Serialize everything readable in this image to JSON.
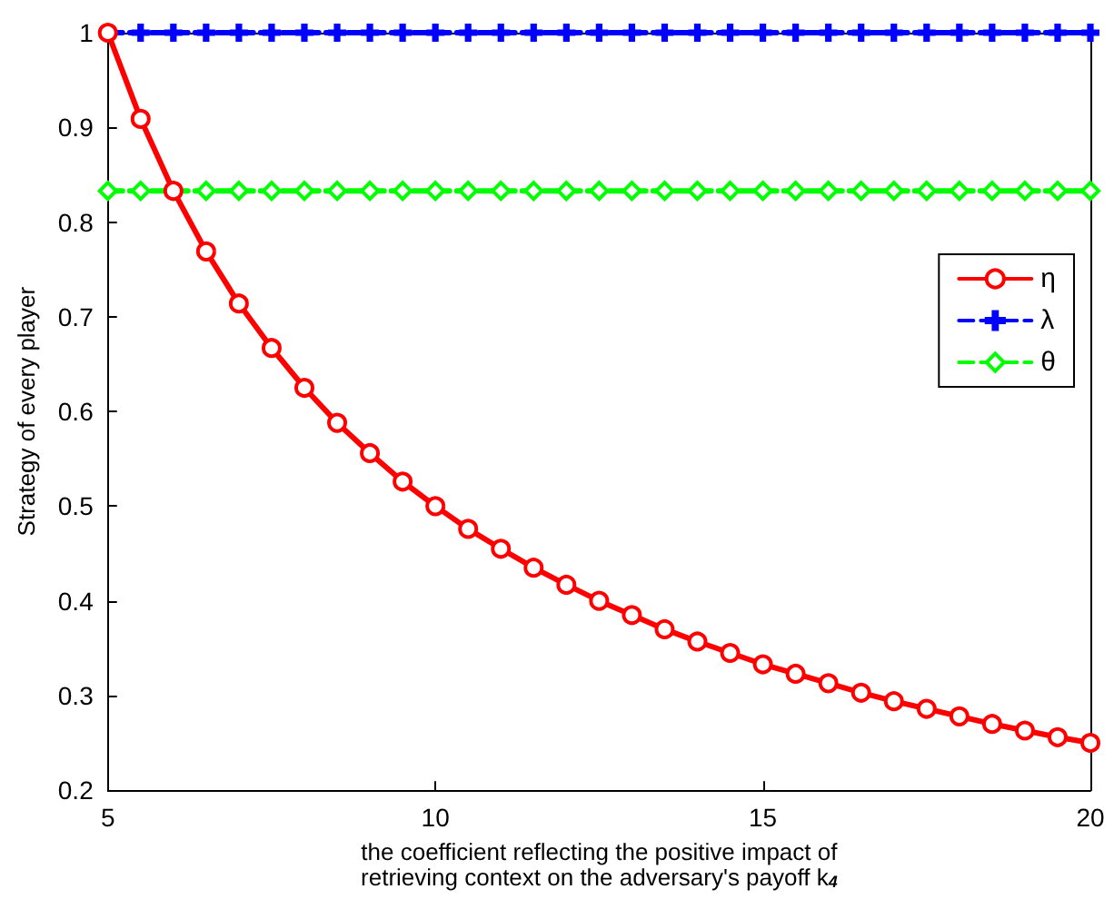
{
  "chart_data": {
    "type": "line",
    "xlabel": "the coefficient reflecting the positive impact of retrieving context on the adversary's payoff k$_{4}$",
    "ylabel": "Strategy of every player",
    "x": [
      5,
      5.5,
      6,
      6.5,
      7,
      7.5,
      8,
      8.5,
      9,
      9.5,
      10,
      10.5,
      11,
      11.5,
      12,
      12.5,
      13,
      13.5,
      14,
      14.5,
      15,
      15.5,
      16,
      16.5,
      17,
      17.5,
      18,
      18.5,
      19,
      19.5,
      20
    ],
    "series": [
      {
        "name": "η",
        "color": "#ff0000",
        "marker": "circle",
        "line_style": "solid",
        "values": [
          1,
          0.909,
          0.833,
          0.769,
          0.714,
          0.667,
          0.625,
          0.588,
          0.556,
          0.526,
          0.5,
          0.476,
          0.455,
          0.435,
          0.417,
          0.4,
          0.385,
          0.37,
          0.357,
          0.345,
          0.333,
          0.323,
          0.313,
          0.303,
          0.294,
          0.286,
          0.278,
          0.27,
          0.263,
          0.256,
          0.25
        ]
      },
      {
        "name": "λ",
        "color": "#0000ff",
        "marker": "cross",
        "line_style": "dashed",
        "values": [
          1,
          1,
          1,
          1,
          1,
          1,
          1,
          1,
          1,
          1,
          1,
          1,
          1,
          1,
          1,
          1,
          1,
          1,
          1,
          1,
          1,
          1,
          1,
          1,
          1,
          1,
          1,
          1,
          1,
          1,
          1
        ]
      },
      {
        "name": "θ",
        "color": "#00ff00",
        "marker": "diamond",
        "line_style": "dashed",
        "values": [
          0.833,
          0.833,
          0.833,
          0.833,
          0.833,
          0.833,
          0.833,
          0.833,
          0.833,
          0.833,
          0.833,
          0.833,
          0.833,
          0.833,
          0.833,
          0.833,
          0.833,
          0.833,
          0.833,
          0.833,
          0.833,
          0.833,
          0.833,
          0.833,
          0.833,
          0.833,
          0.833,
          0.833,
          0.833,
          0.833,
          0.833
        ]
      }
    ],
    "xlim": [
      5,
      20
    ],
    "xticks": [
      5,
      10,
      15,
      20
    ],
    "ylim": [
      0.2,
      1
    ],
    "yticks": [
      0.2,
      0.3,
      0.4,
      0.5,
      0.6,
      0.7,
      0.8,
      0.9,
      1
    ],
    "grid": false,
    "legend": "right"
  }
}
